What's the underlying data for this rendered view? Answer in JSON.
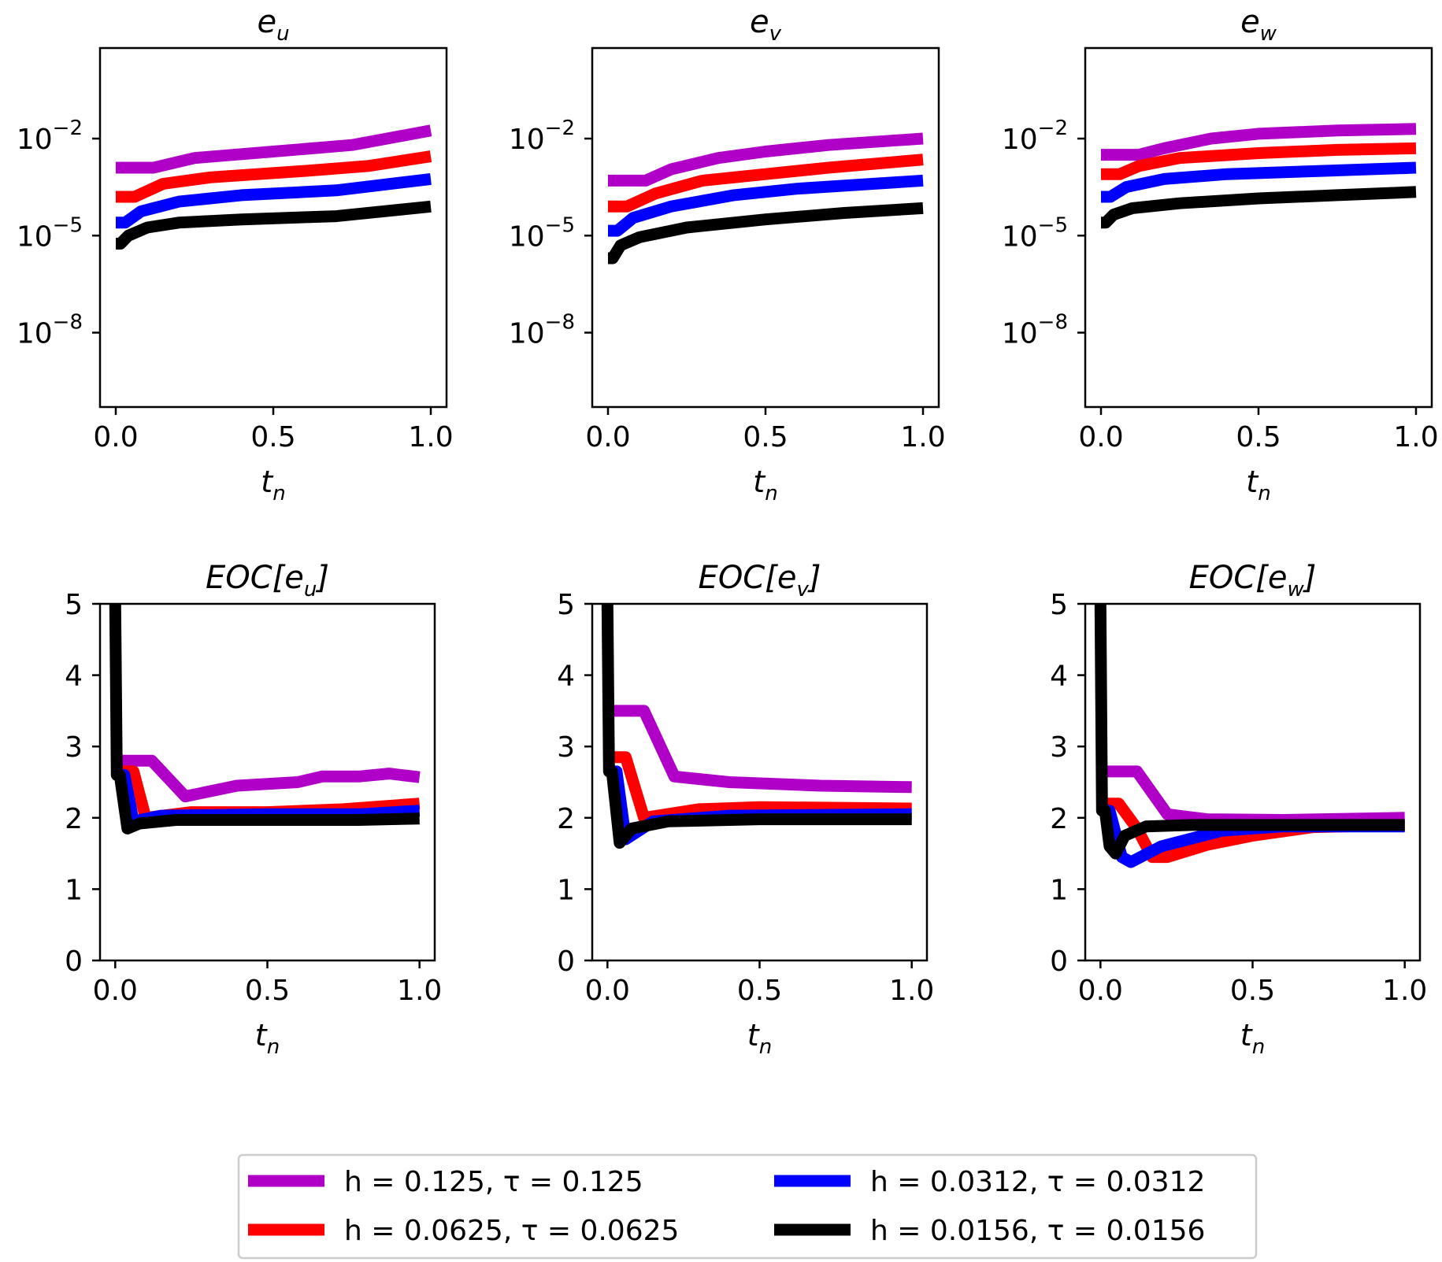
{
  "legend": [
    {
      "key": "h0125",
      "label": "h = 0.125, τ = 0.125",
      "color": "#b000c8"
    },
    {
      "key": "h00625",
      "label": "h = 0.0625, τ = 0.0625",
      "color": "#ff0000"
    },
    {
      "key": "h00312",
      "label": "h = 0.0312, τ = 0.0312",
      "color": "#0000ff"
    },
    {
      "key": "h00156",
      "label": "h = 0.0156, τ = 0.0156",
      "color": "#000000"
    }
  ],
  "chart_data": [
    {
      "type": "line",
      "title_base": "e",
      "title_sub": "u",
      "xlabel_base": "t",
      "xlabel_sub": "n",
      "yscale": "log",
      "xlim": [
        -0.05,
        1.05
      ],
      "ylog_lim": [
        -10.3,
        0.8
      ],
      "xticks": [
        0,
        0.5,
        1
      ],
      "xtick_labels": [
        "0.0",
        "0.5",
        "1.0"
      ],
      "yticks_exp": [
        -2,
        -5,
        -8
      ],
      "yticks_base": "10",
      "ytick_sups": [
        "−2",
        "−5",
        "−8"
      ],
      "series": [
        {
          "key": "h0125",
          "log10_points": [
            [
              0,
              -2.9
            ],
            [
              0.12,
              -2.9
            ],
            [
              0.25,
              -2.6
            ],
            [
              0.5,
              -2.4
            ],
            [
              0.75,
              -2.2
            ],
            [
              1.0,
              -1.75
            ]
          ]
        },
        {
          "key": "h00625",
          "log10_points": [
            [
              0,
              -3.8
            ],
            [
              0.06,
              -3.8
            ],
            [
              0.15,
              -3.4
            ],
            [
              0.3,
              -3.2
            ],
            [
              0.6,
              -3.0
            ],
            [
              0.8,
              -2.85
            ],
            [
              1.0,
              -2.55
            ]
          ]
        },
        {
          "key": "h00312",
          "log10_points": [
            [
              0,
              -4.6
            ],
            [
              0.03,
              -4.6
            ],
            [
              0.08,
              -4.25
            ],
            [
              0.2,
              -3.95
            ],
            [
              0.4,
              -3.75
            ],
            [
              0.7,
              -3.6
            ],
            [
              1.0,
              -3.25
            ]
          ]
        },
        {
          "key": "h00156",
          "log10_points": [
            [
              0,
              -5.25
            ],
            [
              0.015,
              -5.25
            ],
            [
              0.04,
              -5.0
            ],
            [
              0.1,
              -4.75
            ],
            [
              0.2,
              -4.6
            ],
            [
              0.4,
              -4.5
            ],
            [
              0.7,
              -4.4
            ],
            [
              1.0,
              -4.1
            ]
          ]
        }
      ]
    },
    {
      "type": "line",
      "title_base": "e",
      "title_sub": "v",
      "xlabel_base": "t",
      "xlabel_sub": "n",
      "yscale": "log",
      "xlim": [
        -0.05,
        1.05
      ],
      "ylog_lim": [
        -10.3,
        0.8
      ],
      "xticks": [
        0,
        0.5,
        1
      ],
      "xtick_labels": [
        "0.0",
        "0.5",
        "1.0"
      ],
      "yticks_exp": [
        -2,
        -5,
        -8
      ],
      "yticks_base": "10",
      "ytick_sups": [
        "−2",
        "−5",
        "−8"
      ],
      "series": [
        {
          "key": "h0125",
          "log10_points": [
            [
              0,
              -3.3
            ],
            [
              0.12,
              -3.3
            ],
            [
              0.2,
              -2.95
            ],
            [
              0.35,
              -2.6
            ],
            [
              0.5,
              -2.4
            ],
            [
              0.7,
              -2.2
            ],
            [
              1.0,
              -2.0
            ]
          ]
        },
        {
          "key": "h00625",
          "log10_points": [
            [
              0,
              -4.1
            ],
            [
              0.06,
              -4.1
            ],
            [
              0.15,
              -3.7
            ],
            [
              0.3,
              -3.3
            ],
            [
              0.5,
              -3.1
            ],
            [
              0.7,
              -2.9
            ],
            [
              1.0,
              -2.65
            ]
          ]
        },
        {
          "key": "h00312",
          "log10_points": [
            [
              0,
              -4.85
            ],
            [
              0.03,
              -4.85
            ],
            [
              0.08,
              -4.45
            ],
            [
              0.2,
              -4.1
            ],
            [
              0.4,
              -3.75
            ],
            [
              0.6,
              -3.55
            ],
            [
              1.0,
              -3.3
            ]
          ]
        },
        {
          "key": "h00156",
          "log10_points": [
            [
              0,
              -5.7
            ],
            [
              0.015,
              -5.7
            ],
            [
              0.04,
              -5.3
            ],
            [
              0.1,
              -5.05
            ],
            [
              0.25,
              -4.75
            ],
            [
              0.5,
              -4.5
            ],
            [
              0.75,
              -4.3
            ],
            [
              1.0,
              -4.15
            ]
          ]
        }
      ]
    },
    {
      "type": "line",
      "title_base": "e",
      "title_sub": "w",
      "xlabel_base": "t",
      "xlabel_sub": "n",
      "yscale": "log",
      "xlim": [
        -0.05,
        1.05
      ],
      "ylog_lim": [
        -10.3,
        0.8
      ],
      "xticks": [
        0,
        0.5,
        1
      ],
      "xtick_labels": [
        "0.0",
        "0.5",
        "1.0"
      ],
      "yticks_exp": [
        -2,
        -5,
        -8
      ],
      "yticks_base": "10",
      "ytick_sups": [
        "−2",
        "−5",
        "−8"
      ],
      "series": [
        {
          "key": "h0125",
          "log10_points": [
            [
              0,
              -2.5
            ],
            [
              0.12,
              -2.5
            ],
            [
              0.2,
              -2.3
            ],
            [
              0.35,
              -2.0
            ],
            [
              0.5,
              -1.85
            ],
            [
              0.75,
              -1.75
            ],
            [
              1.0,
              -1.7
            ]
          ]
        },
        {
          "key": "h00625",
          "log10_points": [
            [
              0,
              -3.1
            ],
            [
              0.06,
              -3.1
            ],
            [
              0.12,
              -2.85
            ],
            [
              0.25,
              -2.6
            ],
            [
              0.5,
              -2.45
            ],
            [
              0.75,
              -2.35
            ],
            [
              1.0,
              -2.3
            ]
          ]
        },
        {
          "key": "h00312",
          "log10_points": [
            [
              0,
              -3.8
            ],
            [
              0.03,
              -3.8
            ],
            [
              0.08,
              -3.5
            ],
            [
              0.2,
              -3.25
            ],
            [
              0.4,
              -3.1
            ],
            [
              0.7,
              -3.0
            ],
            [
              1.0,
              -2.9
            ]
          ]
        },
        {
          "key": "h00156",
          "log10_points": [
            [
              0,
              -4.6
            ],
            [
              0.015,
              -4.6
            ],
            [
              0.04,
              -4.35
            ],
            [
              0.1,
              -4.15
            ],
            [
              0.25,
              -4.0
            ],
            [
              0.5,
              -3.85
            ],
            [
              0.75,
              -3.75
            ],
            [
              1.0,
              -3.65
            ]
          ]
        }
      ]
    },
    {
      "type": "line",
      "title_base": "EOC[e",
      "title_sub": "u",
      "title_end": "]",
      "xlabel_base": "t",
      "xlabel_sub": "n",
      "yscale": "linear",
      "xlim": [
        -0.05,
        1.05
      ],
      "ylim": [
        0,
        5
      ],
      "xticks": [
        0,
        0.5,
        1
      ],
      "xtick_labels": [
        "0.0",
        "0.5",
        "1.0"
      ],
      "yticks": [
        0,
        1,
        2,
        3,
        4,
        5
      ],
      "ytick_labels": [
        "0",
        "1",
        "2",
        "3",
        "4",
        "5"
      ],
      "series": [
        {
          "key": "h0125",
          "points": [
            [
              0,
              2.8
            ],
            [
              0.12,
              2.8
            ],
            [
              0.23,
              2.3
            ],
            [
              0.4,
              2.45
            ],
            [
              0.6,
              2.5
            ],
            [
              0.68,
              2.58
            ],
            [
              0.8,
              2.58
            ],
            [
              0.9,
              2.62
            ],
            [
              1.0,
              2.57
            ]
          ]
        },
        {
          "key": "h00625",
          "points": [
            [
              0,
              2.65
            ],
            [
              0.06,
              2.65
            ],
            [
              0.1,
              2.0
            ],
            [
              0.25,
              2.08
            ],
            [
              0.5,
              2.08
            ],
            [
              0.75,
              2.12
            ],
            [
              1.0,
              2.2
            ]
          ]
        },
        {
          "key": "h00312",
          "points": [
            [
              0,
              2.6
            ],
            [
              0.03,
              2.6
            ],
            [
              0.06,
              1.95
            ],
            [
              0.15,
              2.03
            ],
            [
              0.5,
              2.05
            ],
            [
              0.8,
              2.05
            ],
            [
              1.0,
              2.1
            ]
          ]
        },
        {
          "key": "h00156",
          "points": [
            [
              0,
              5.0
            ],
            [
              0.005,
              2.6
            ],
            [
              0.015,
              2.6
            ],
            [
              0.04,
              1.85
            ],
            [
              0.08,
              1.92
            ],
            [
              0.2,
              1.97
            ],
            [
              0.5,
              1.97
            ],
            [
              0.8,
              1.97
            ],
            [
              1.0,
              1.99
            ]
          ]
        }
      ]
    },
    {
      "type": "line",
      "title_base": "EOC[e",
      "title_sub": "v",
      "title_end": "]",
      "xlabel_base": "t",
      "xlabel_sub": "n",
      "yscale": "linear",
      "xlim": [
        -0.05,
        1.05
      ],
      "ylim": [
        0,
        5
      ],
      "xticks": [
        0,
        0.5,
        1
      ],
      "xtick_labels": [
        "0.0",
        "0.5",
        "1.0"
      ],
      "yticks": [
        0,
        1,
        2,
        3,
        4,
        5
      ],
      "ytick_labels": [
        "0",
        "1",
        "2",
        "3",
        "4",
        "5"
      ],
      "series": [
        {
          "key": "h0125",
          "points": [
            [
              0,
              3.5
            ],
            [
              0.12,
              3.5
            ],
            [
              0.22,
              2.58
            ],
            [
              0.4,
              2.5
            ],
            [
              0.7,
              2.45
            ],
            [
              1.0,
              2.43
            ]
          ]
        },
        {
          "key": "h00625",
          "points": [
            [
              0,
              2.85
            ],
            [
              0.06,
              2.85
            ],
            [
              0.12,
              2.0
            ],
            [
              0.3,
              2.12
            ],
            [
              0.5,
              2.15
            ],
            [
              1.0,
              2.13
            ]
          ]
        },
        {
          "key": "h00312",
          "points": [
            [
              0,
              2.65
            ],
            [
              0.03,
              2.65
            ],
            [
              0.06,
              1.7
            ],
            [
              0.15,
              1.95
            ],
            [
              0.4,
              2.03
            ],
            [
              1.0,
              2.05
            ]
          ]
        },
        {
          "key": "h00156",
          "points": [
            [
              0,
              5.0
            ],
            [
              0.005,
              2.65
            ],
            [
              0.015,
              2.65
            ],
            [
              0.04,
              1.65
            ],
            [
              0.08,
              1.85
            ],
            [
              0.2,
              1.95
            ],
            [
              0.5,
              1.98
            ],
            [
              1.0,
              1.98
            ]
          ]
        }
      ]
    },
    {
      "type": "line",
      "title_base": "EOC[e",
      "title_sub": "w",
      "title_end": "]",
      "xlabel_base": "t",
      "xlabel_sub": "n",
      "yscale": "linear",
      "xlim": [
        -0.05,
        1.05
      ],
      "ylim": [
        0,
        5
      ],
      "xticks": [
        0,
        0.5,
        1
      ],
      "xtick_labels": [
        "0.0",
        "0.5",
        "1.0"
      ],
      "yticks": [
        0,
        1,
        2,
        3,
        4,
        5
      ],
      "ytick_labels": [
        "0",
        "1",
        "2",
        "3",
        "4",
        "5"
      ],
      "series": [
        {
          "key": "h0125",
          "points": [
            [
              0,
              2.65
            ],
            [
              0.12,
              2.65
            ],
            [
              0.22,
              2.05
            ],
            [
              0.35,
              1.98
            ],
            [
              0.6,
              1.97
            ],
            [
              1.0,
              2.0
            ]
          ]
        },
        {
          "key": "h00625",
          "points": [
            [
              0,
              2.2
            ],
            [
              0.06,
              2.2
            ],
            [
              0.12,
              1.85
            ],
            [
              0.17,
              1.45
            ],
            [
              0.22,
              1.45
            ],
            [
              0.35,
              1.62
            ],
            [
              0.5,
              1.75
            ],
            [
              0.7,
              1.87
            ],
            [
              1.0,
              1.9
            ]
          ]
        },
        {
          "key": "h00312",
          "points": [
            [
              0,
              2.1
            ],
            [
              0.03,
              2.1
            ],
            [
              0.07,
              1.45
            ],
            [
              0.1,
              1.38
            ],
            [
              0.2,
              1.6
            ],
            [
              0.4,
              1.82
            ],
            [
              0.6,
              1.88
            ],
            [
              1.0,
              1.88
            ]
          ]
        },
        {
          "key": "h00156",
          "points": [
            [
              0,
              5.0
            ],
            [
              0.005,
              2.1
            ],
            [
              0.015,
              2.1
            ],
            [
              0.03,
              1.6
            ],
            [
              0.05,
              1.5
            ],
            [
              0.08,
              1.75
            ],
            [
              0.15,
              1.88
            ],
            [
              0.3,
              1.9
            ],
            [
              1.0,
              1.9
            ]
          ]
        }
      ]
    }
  ]
}
